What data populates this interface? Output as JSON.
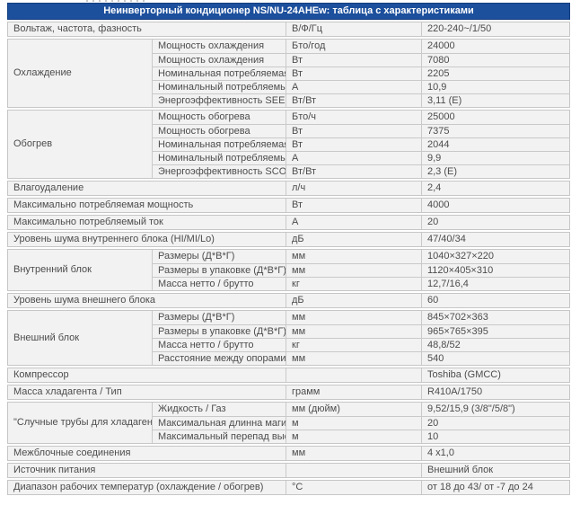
{
  "table": {
    "title": "Неинверторный кондиционер NS/NU-24AHEw: таблица с характеристиками",
    "groups": [
      {
        "category": "Вольтаж, частота, фазность",
        "rows": [
          {
            "unit": "В/Ф/Гц",
            "value": "220-240~/1/50"
          }
        ]
      },
      {
        "category": "Охлаждение",
        "rows": [
          {
            "param": "Мощность охлаждения",
            "unit": "Бто/год",
            "value": "24000"
          },
          {
            "param": "Мощность охлаждения",
            "unit": "Вт",
            "value": "7080"
          },
          {
            "param": "Номинальная потребляемая мощность",
            "unit": "Вт",
            "value": "2205"
          },
          {
            "param": "Номинальный потребляемый ток",
            "unit": "А",
            "value": "10,9"
          },
          {
            "param": "Энергоэффективность SEER (класс)",
            "unit": "Вт/Вт",
            "value": "3,11 (Е)"
          }
        ]
      },
      {
        "category": "Обогрев",
        "rows": [
          {
            "param": "Мощность обогрева",
            "unit": "Бто/ч",
            "value": "25000"
          },
          {
            "param": "Мощность обогрева",
            "unit": "Вт",
            "value": "7375"
          },
          {
            "param": "Номинальная потребляемая мощность",
            "unit": "Вт",
            "value": "2044"
          },
          {
            "param": "Номинальный потребляемый ток",
            "unit": "А",
            "value": "9,9"
          },
          {
            "param": "Энергоэффективность SCOP (класс)",
            "unit": "Вт/Вт",
            "value": "2,3 (Е)"
          }
        ]
      },
      {
        "category": "Влагоудаление",
        "rows": [
          {
            "unit": "л/ч",
            "value": "2,4"
          }
        ]
      },
      {
        "category": "Максимально потребляемая мощность",
        "rows": [
          {
            "unit": "Вт",
            "value": "4000"
          }
        ]
      },
      {
        "category": "Максимально потребляемый ток",
        "rows": [
          {
            "unit": "А",
            "value": "20"
          }
        ]
      },
      {
        "category": "Уровень шума внутреннего блока (HI/MI/Lo)",
        "rows": [
          {
            "unit": "дБ",
            "value": "47/40/34"
          }
        ]
      },
      {
        "category": "Внутренний блок",
        "rows": [
          {
            "param": "Размеры (Д*В*Г)",
            "unit": "мм",
            "value": "1040×327×220"
          },
          {
            "param": "Размеры в упаковке (Д*В*Г)",
            "unit": "мм",
            "value": "1120×405×310"
          },
          {
            "param": "Масса нетто / брутто",
            "unit": "кг",
            "value": "12,7/16,4"
          }
        ]
      },
      {
        "category": "Уровень шума внешнего блока",
        "rows": [
          {
            "unit": "дБ",
            "value": "60"
          }
        ]
      },
      {
        "category": "Внешний блок",
        "rows": [
          {
            "param": "Размеры (Д*В*Г)",
            "unit": "мм",
            "value": "845×702×363"
          },
          {
            "param": "Размеры в упаковке (Д*В*Г)",
            "unit": "мм",
            "value": "965×765×395"
          },
          {
            "param": "Масса нетто / брутто",
            "unit": "кг",
            "value": "48,8/52"
          },
          {
            "param": "Расстояние между опорами",
            "unit": "мм",
            "value": "540"
          }
        ]
      },
      {
        "category": "Компрессор",
        "rows": [
          {
            "unit": "",
            "value": "Toshiba (GMCC)"
          }
        ]
      },
      {
        "category": "Масса хладагента / Тип",
        "rows": [
          {
            "unit": "грамм",
            "value": "R410A/1750"
          }
        ]
      },
      {
        "category": "\"Случные трубы для хладагента\"",
        "rows": [
          {
            "param": "Жидкость / Газ",
            "unit": "мм (дюйм)",
            "value": "9,52/15,9 (3/8\"/5/8\")"
          },
          {
            "param": "Максимальная длинна магистрали",
            "unit": "м",
            "value": "20"
          },
          {
            "param": "Максимальный перепад высот",
            "unit": "м",
            "value": "10"
          }
        ]
      },
      {
        "category": "Межблочные соединения",
        "rows": [
          {
            "unit": "мм",
            "value": "4 х1,0"
          }
        ]
      },
      {
        "category": "Источник питания",
        "rows": [
          {
            "unit": "",
            "value": "Внешний блок"
          }
        ]
      },
      {
        "category": "Диапазон рабочих температур (охлаждение / обогрев)",
        "rows": [
          {
            "unit": "°С",
            "value": "от 18 до 43/ от -7 до 24"
          }
        ]
      }
    ]
  }
}
